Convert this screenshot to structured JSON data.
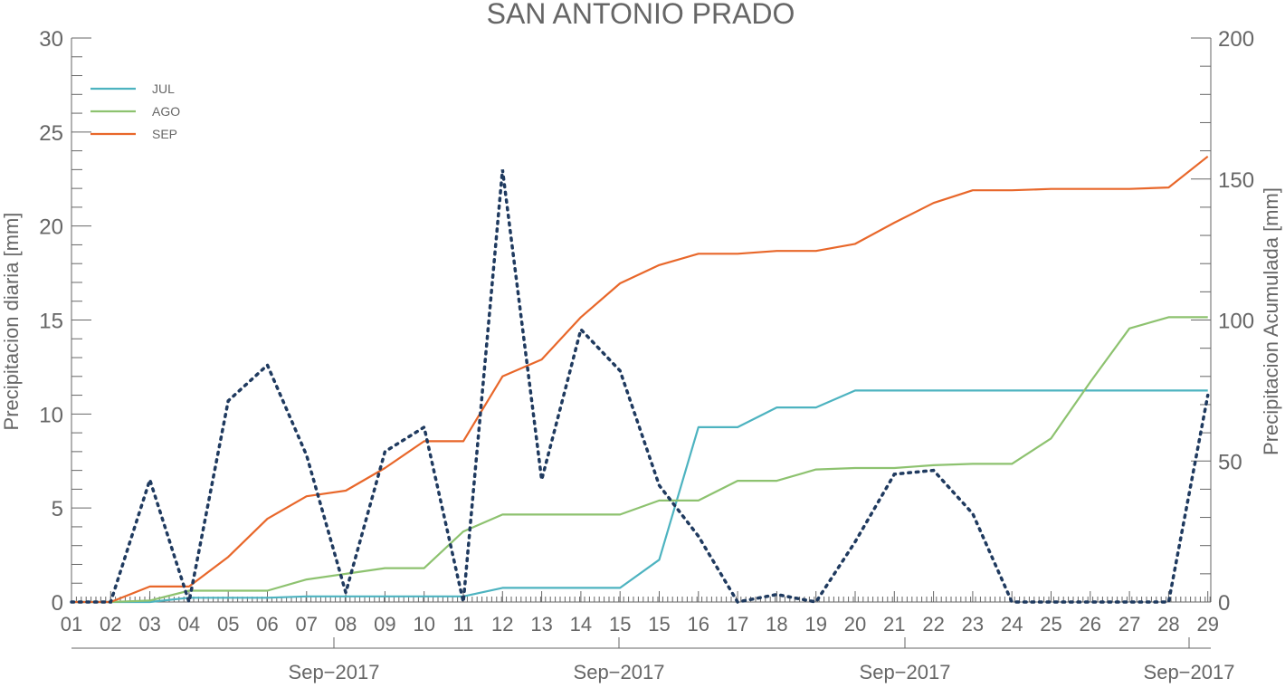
{
  "chart_data": {
    "type": "line",
    "title": "SAN ANTONIO PRADO",
    "ylabel_left": "Precipitacion diaria [mm]",
    "ylabel_right": "Precipitacion Acumulada [mm]",
    "ylim_left": [
      0,
      30
    ],
    "ylim_right": [
      0,
      200
    ],
    "yticks_left": [
      0,
      5,
      10,
      15,
      20,
      25,
      30
    ],
    "yticks_right": [
      0,
      50,
      100,
      150,
      200
    ],
    "x_tick_labels": [
      "01",
      "02",
      "03",
      "04",
      "05",
      "06",
      "07",
      "08",
      "09",
      "10",
      "11",
      "12",
      "13",
      "14",
      "15",
      "15",
      "16",
      "17",
      "18",
      "19",
      "20",
      "21",
      "22",
      "23",
      "24",
      "25",
      "26",
      "27",
      "28",
      "29"
    ],
    "month_labels": [
      "Sep−2017",
      "Sep−2017",
      "Sep−2017",
      "Sep−2017"
    ],
    "legend_placement": "top-left",
    "grid": false,
    "daily_series": {
      "axis": "left",
      "style": "dotted",
      "color": "#1f3a5f",
      "values": [
        0,
        0,
        6.5,
        0,
        10.7,
        12.6,
        7.8,
        0.5,
        8,
        9.3,
        0,
        23,
        6.5,
        14.5,
        12.3,
        6.2,
        3.5,
        0,
        0.4,
        0,
        3.2,
        6.8,
        7,
        4.7,
        0,
        0,
        0,
        0,
        0,
        11
      ]
    },
    "series": [
      {
        "name": "JUL",
        "axis": "right",
        "color": "#4db3c0",
        "values": [
          0,
          0,
          0,
          1.5,
          1.5,
          1.5,
          2,
          2,
          2,
          2,
          2,
          5,
          5,
          5,
          5,
          15,
          62,
          62,
          69,
          69,
          75,
          75,
          75,
          75,
          75,
          75,
          75,
          75,
          75,
          75
        ]
      },
      {
        "name": "AGO",
        "axis": "right",
        "color": "#8dc26f",
        "values": [
          0,
          0,
          0.5,
          4,
          4,
          4,
          8,
          10,
          12,
          12,
          25,
          31,
          31,
          31,
          31,
          36,
          36,
          43,
          43,
          47,
          47.5,
          47.5,
          48.5,
          49,
          49,
          58,
          78,
          97,
          101,
          101
        ]
      },
      {
        "name": "SEP",
        "axis": "right",
        "color": "#e8672a",
        "values": [
          0,
          0,
          5.5,
          5.5,
          16,
          29.5,
          37.5,
          39.5,
          47.5,
          57,
          57,
          80,
          86,
          101,
          113,
          119.5,
          123.5,
          123.5,
          124.5,
          124.5,
          127,
          134.5,
          141.5,
          146,
          146,
          146.5,
          146.5,
          146.5,
          147,
          158
        ]
      }
    ]
  }
}
